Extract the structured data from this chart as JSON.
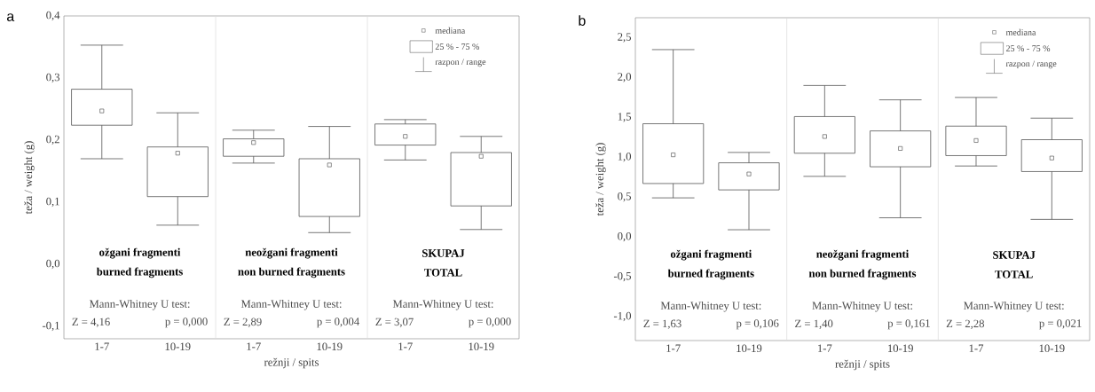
{
  "chart_data": [
    {
      "type": "box",
      "title": "a",
      "xlabel": "režnji / spits",
      "ylabel": "teža / weight (g)",
      "categories": [
        "1-7",
        "10-19",
        "1-7",
        "10-19",
        "1-7",
        "10-19"
      ],
      "boxes": [
        {
          "low": 0.17,
          "q1": 0.224,
          "median": 0.247,
          "q3": 0.282,
          "high": 0.353
        },
        {
          "low": 0.063,
          "q1": 0.109,
          "median": 0.179,
          "q3": 0.189,
          "high": 0.244
        },
        {
          "low": 0.163,
          "q1": 0.174,
          "median": 0.196,
          "q3": 0.202,
          "high": 0.216
        },
        {
          "low": 0.051,
          "q1": 0.077,
          "median": 0.16,
          "q3": 0.17,
          "high": 0.222
        },
        {
          "low": 0.168,
          "q1": 0.192,
          "median": 0.206,
          "q3": 0.226,
          "high": 0.233
        },
        {
          "low": 0.056,
          "q1": 0.094,
          "median": 0.174,
          "q3": 0.18,
          "high": 0.206
        }
      ],
      "color": "#555555",
      "marker": "square",
      "ylim": [
        -0.12,
        0.4
      ],
      "yticks": [
        {
          "value": -0.1,
          "label": "-0,1"
        },
        {
          "value": 0.0,
          "label": "0,0"
        },
        {
          "value": 0.1,
          "label": "0,1"
        },
        {
          "value": 0.2,
          "label": "0,2"
        },
        {
          "value": 0.3,
          "label": "0,3"
        },
        {
          "value": 0.4,
          "label": "0,4"
        }
      ],
      "annotations": [
        "mediana",
        "25 % - 75 %",
        "razpon / range",
        "ožgani fragmenti",
        "burned fragments",
        "Mann-Whitney U test:",
        "Z = 4,16",
        "p = 0,000",
        "neožgani fragmenti",
        "non burned fragments",
        "Mann-Whitney U test:",
        "Z = 2,89",
        "p = 0,004",
        "SKUPAJ",
        "TOTAL",
        "Mann-Whitney U test:",
        "Z = 3,07",
        "p = 0,000"
      ]
    },
    {
      "type": "box",
      "title": "b",
      "xlabel": "režnji / spits",
      "ylabel": "teža / weight (g)",
      "categories": [
        "1-7",
        "10-19",
        "1-7",
        "10-19",
        "1-7",
        "10-19"
      ],
      "boxes": [
        {
          "low": 0.49,
          "q1": 0.67,
          "median": 1.03,
          "q3": 1.42,
          "high": 2.35
        },
        {
          "low": 0.09,
          "q1": 0.59,
          "median": 0.79,
          "q3": 0.93,
          "high": 1.06
        },
        {
          "low": 0.76,
          "q1": 1.05,
          "median": 1.26,
          "q3": 1.51,
          "high": 1.9
        },
        {
          "low": 0.24,
          "q1": 0.88,
          "median": 1.11,
          "q3": 1.33,
          "high": 1.72
        },
        {
          "low": 0.89,
          "q1": 1.02,
          "median": 1.21,
          "q3": 1.39,
          "high": 1.75
        },
        {
          "low": 0.22,
          "q1": 0.82,
          "median": 0.99,
          "q3": 1.22,
          "high": 1.49
        }
      ],
      "color": "#555555",
      "marker": "square",
      "ylim": [
        -1.3,
        2.75
      ],
      "yticks": [
        {
          "value": -1.0,
          "label": "-1,0"
        },
        {
          "value": -0.5,
          "label": "-0,5"
        },
        {
          "value": 0.0,
          "label": "0,0"
        },
        {
          "value": 0.5,
          "label": "0,5"
        },
        {
          "value": 1.0,
          "label": "1,0"
        },
        {
          "value": 1.5,
          "label": "1,5"
        },
        {
          "value": 2.0,
          "label": "2,0"
        },
        {
          "value": 2.5,
          "label": "2,5"
        }
      ],
      "annotations": [
        "mediana",
        "25 % - 75 %",
        "razpon / range",
        "ožgani fragmenti",
        "burned fragments",
        "Mann-Whitney U test:",
        "Z = 1,63",
        "p = 0,106",
        "neožgani fragmenti",
        "non burned fragments",
        "Mann-Whitney U test:",
        "Z = 1,40",
        "p = 0,161",
        "SKUPAJ",
        "TOTAL",
        "Mann-Whitney U test:",
        "Z = 2,28",
        "p = 0,021"
      ]
    }
  ]
}
